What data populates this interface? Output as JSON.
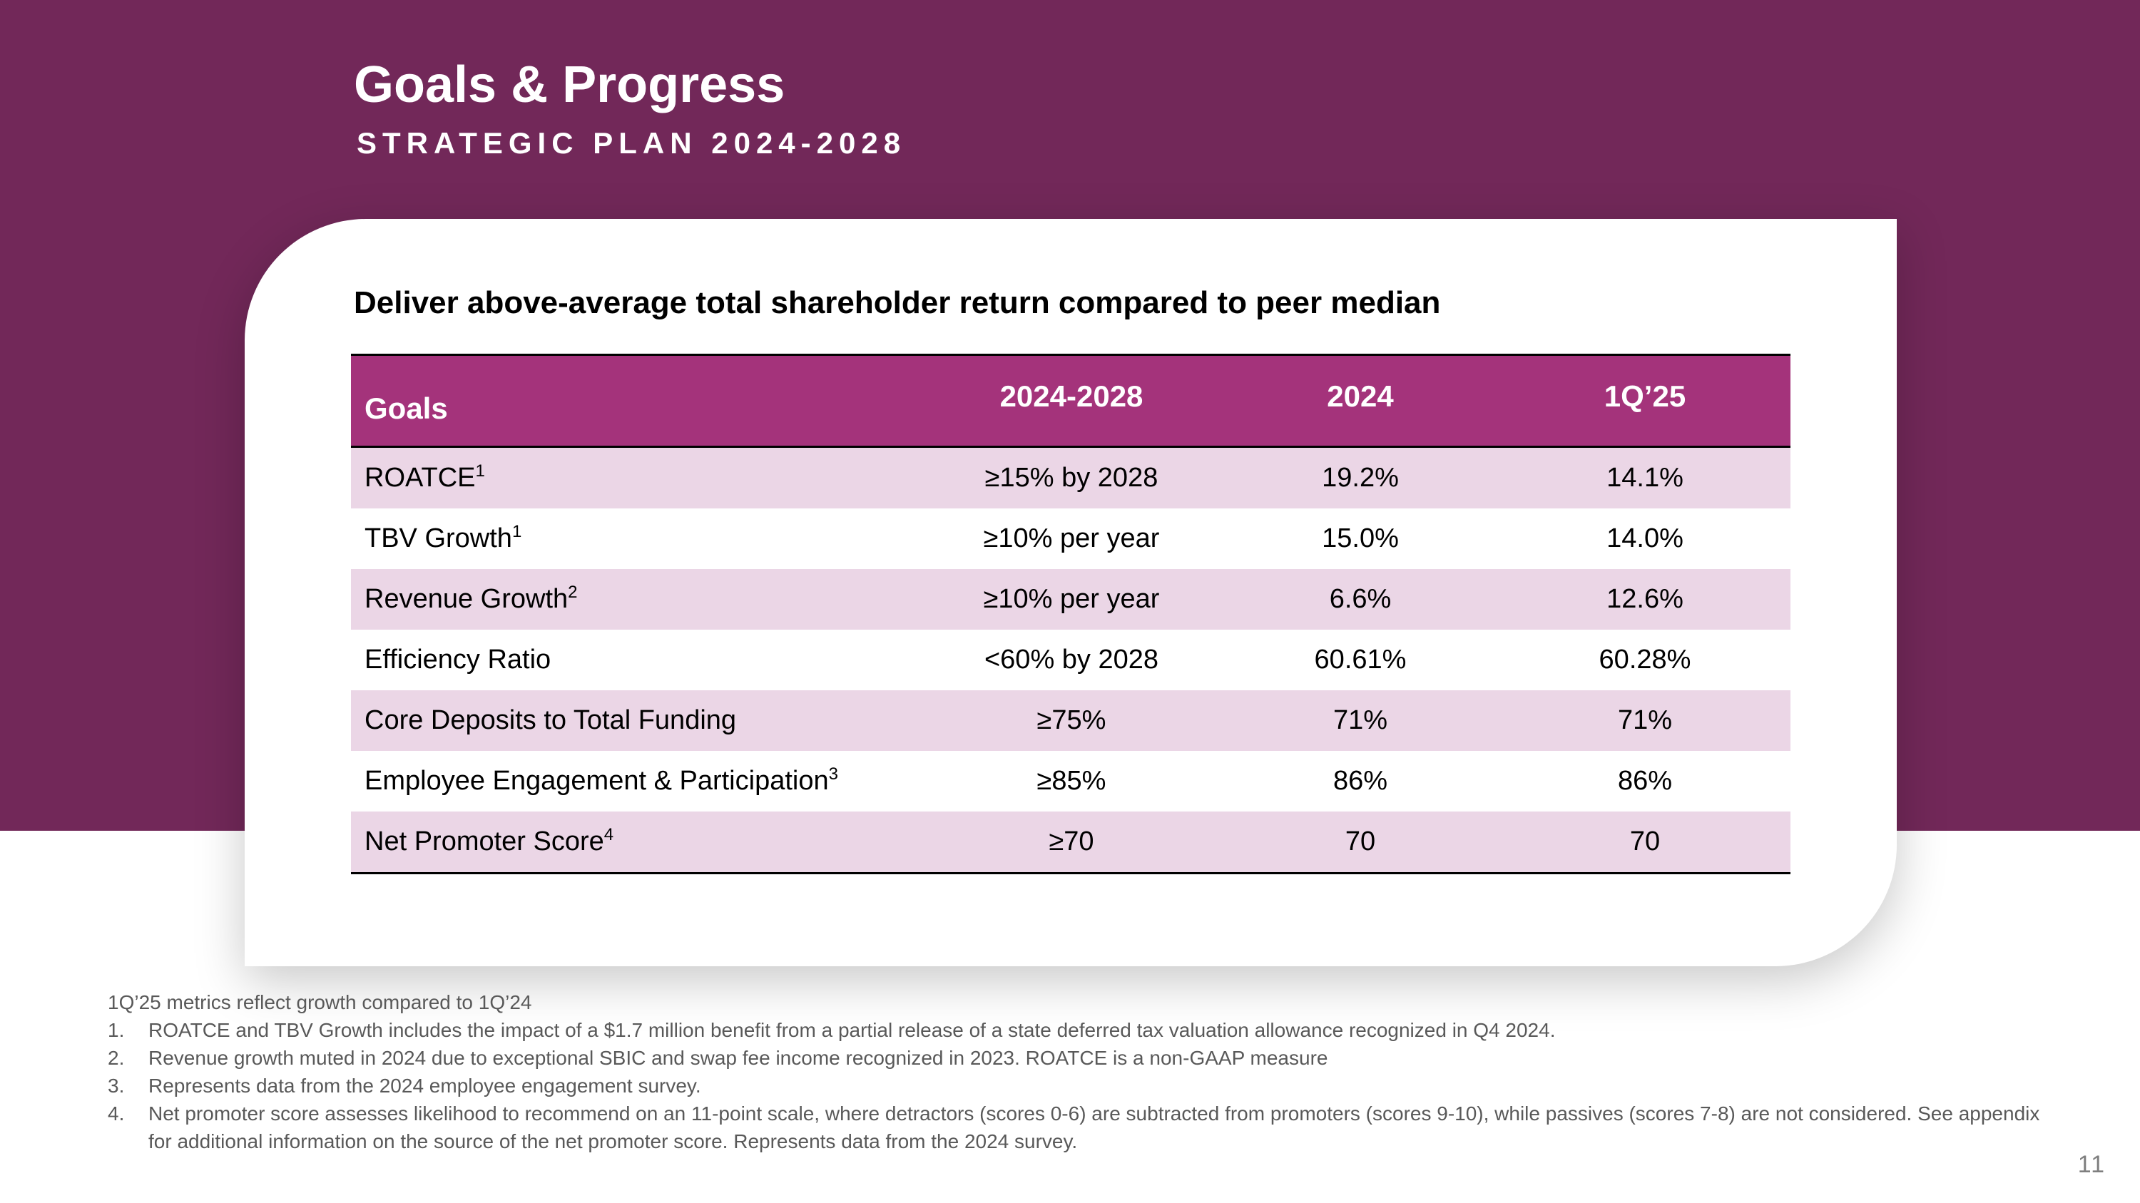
{
  "header": {
    "title": "Goals & Progress",
    "subtitle": "STRATEGIC PLAN 2024-2028"
  },
  "card": {
    "heading": "Deliver above-average total shareholder return compared to peer median"
  },
  "table": {
    "headers": [
      "Goals",
      "2024-2028",
      "2024",
      "1Q’25"
    ],
    "rows": [
      {
        "goal": "ROATCE",
        "sup": "1",
        "target": "≥15% by 2028",
        "y2024": "19.2%",
        "q125": "14.1%"
      },
      {
        "goal": "TBV Growth",
        "sup": "1",
        "target": "≥10% per year",
        "y2024": "15.0%",
        "q125": "14.0%"
      },
      {
        "goal": "Revenue Growth",
        "sup": "2",
        "target": "≥10% per year",
        "y2024": "6.6%",
        "q125": "12.6%"
      },
      {
        "goal": "Efficiency Ratio",
        "sup": "",
        "target": "<60% by 2028",
        "y2024": "60.61%",
        "q125": "60.28%"
      },
      {
        "goal": "Core Deposits to Total Funding",
        "sup": "",
        "target": "≥75%",
        "y2024": "71%",
        "q125": "71%"
      },
      {
        "goal": "Employee Engagement & Participation",
        "sup": "3",
        "target": "≥85%",
        "y2024": "86%",
        "q125": "86%"
      },
      {
        "goal": "Net Promoter Score",
        "sup": "4",
        "target": "≥70",
        "y2024": "70",
        "q125": "70"
      }
    ]
  },
  "footnotes": {
    "intro": "1Q’25 metrics reflect growth compared to 1Q’24",
    "items": [
      {
        "num": "1.",
        "text": "ROATCE and TBV Growth includes the impact of a $1.7 million benefit from a partial release of a state deferred tax valuation allowance recognized in Q4 2024."
      },
      {
        "num": "2.",
        "text": "Revenue growth muted in 2024 due to exceptional SBIC and swap fee income recognized in 2023. ROATCE is a non-GAAP measure"
      },
      {
        "num": "3.",
        "text": "Represents data from the 2024 employee engagement survey."
      },
      {
        "num": "4.",
        "text": "Net promoter score assesses likelihood to recommend on an 11-point scale, where detractors (scores 0-6) are subtracted from promoters (scores 9-10), while passives (scores 7-8) are not considered. See appendix for additional information on the source of the net promoter score. Represents data from the 2024 survey."
      }
    ]
  },
  "page_number": "11",
  "colors": {
    "band": "#722859",
    "table_header": "#a4337b",
    "row_alt": "#ebd6e6",
    "footnote_text": "#595959"
  }
}
